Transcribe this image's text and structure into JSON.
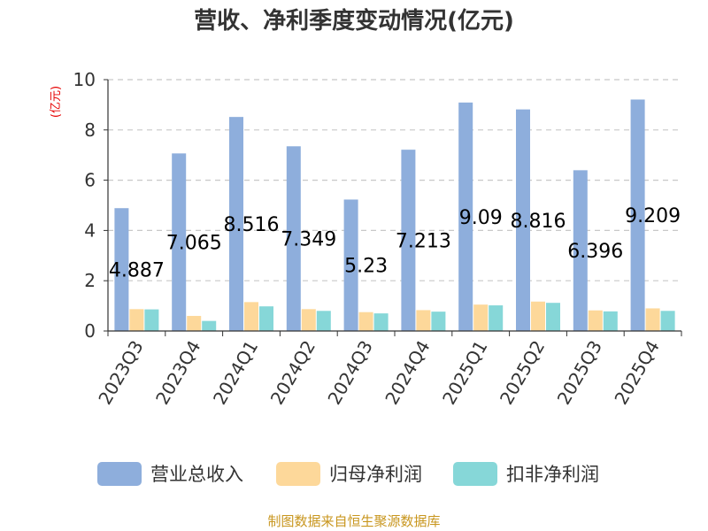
{
  "chart_data": {
    "type": "bar",
    "title": "营收、净利季度变动情况(亿元)",
    "unit_label": "(亿元)",
    "categories": [
      "2023Q3",
      "2023Q4",
      "2024Q1",
      "2024Q2",
      "2024Q3",
      "2024Q4",
      "2025Q1",
      "2025Q2",
      "2025Q3",
      "2025Q4"
    ],
    "series": [
      {
        "name": "营业总收入",
        "color": "#8eaedc",
        "values": [
          4.887,
          7.065,
          8.516,
          7.349,
          5.23,
          7.213,
          9.09,
          8.816,
          6.396,
          9.209
        ]
      },
      {
        "name": "归母净利润",
        "color": "#fdd89a",
        "values": [
          0.87,
          0.6,
          1.15,
          0.87,
          0.75,
          0.83,
          1.05,
          1.17,
          0.82,
          0.9
        ]
      },
      {
        "name": "扣非净利润",
        "color": "#86d7d8",
        "values": [
          0.86,
          0.4,
          0.98,
          0.8,
          0.7,
          0.77,
          1.02,
          1.12,
          0.78,
          0.8
        ]
      }
    ],
    "data_labels": [
      "4.887",
      "7.065",
      "8.516",
      "7.349",
      "5.23",
      "7.213",
      "9.09",
      "8.816",
      "6.396",
      "9.209"
    ],
    "ylim": [
      0,
      10
    ],
    "yticks": [
      0,
      2,
      4,
      6,
      8,
      10
    ],
    "grid": "dashed horizontal",
    "legend_position": "bottom"
  },
  "source": "制图数据来自恒生聚源数据库"
}
